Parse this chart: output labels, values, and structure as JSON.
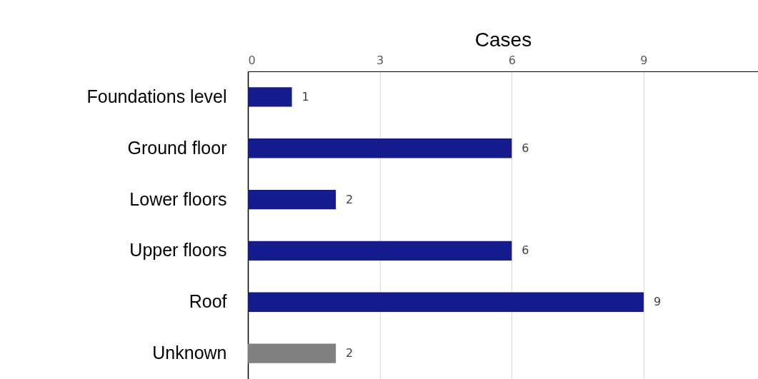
{
  "chart_data": {
    "type": "bar",
    "orientation": "horizontal",
    "xlabel": "Cases",
    "categories": [
      "Foundations level",
      "Ground floor",
      "Lower floors",
      "Upper floors",
      "Roof",
      "Unknown"
    ],
    "values": [
      1,
      6,
      2,
      6,
      9,
      2
    ],
    "colors": [
      "#141b8c",
      "#141b8c",
      "#141b8c",
      "#141b8c",
      "#141b8c",
      "#808080"
    ],
    "xlim": [
      0,
      11.6
    ],
    "xticks": [
      0,
      3,
      6,
      9
    ],
    "grid": "x",
    "data_labels": true
  }
}
